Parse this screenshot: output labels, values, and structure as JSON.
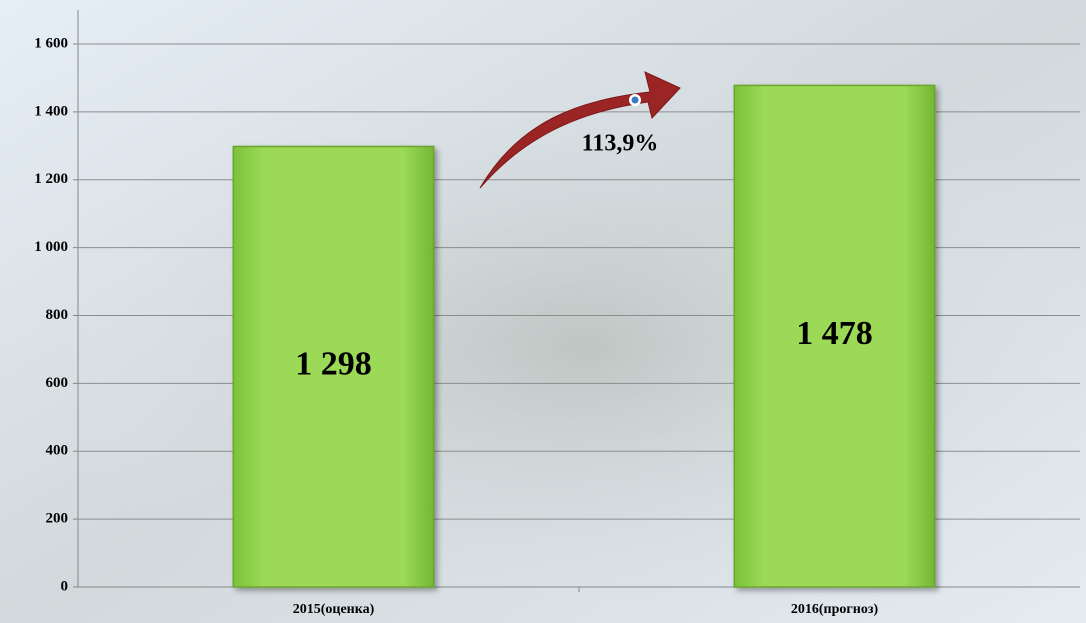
{
  "chart_data": {
    "type": "bar",
    "categories": [
      "2015(оценка)",
      "2016(прогноз)"
    ],
    "values": [
      1298,
      1478
    ],
    "value_labels": [
      "1 298",
      "1 478"
    ],
    "color": "#92d050",
    "ylim": [
      0,
      1600
    ],
    "yticks": [
      0,
      200,
      400,
      600,
      800,
      {
        "value": 1000,
        "label": "1 000"
      },
      {
        "value": 1200,
        "label": "1 200"
      },
      {
        "value": 1400,
        "label": "1 400"
      },
      {
        "value": 1600,
        "label": "1 600"
      }
    ],
    "grid": true,
    "annotation": "113,9%"
  }
}
